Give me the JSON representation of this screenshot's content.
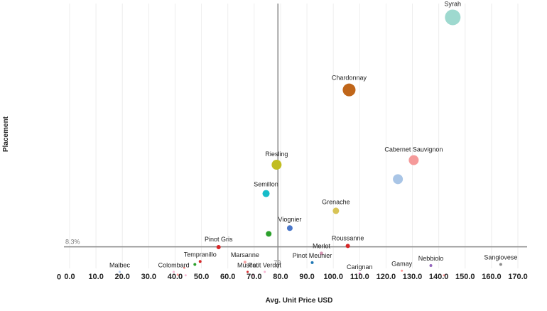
{
  "chart_data": {
    "type": "scatter",
    "title": "",
    "xlabel": "Avg. Unit Price USD",
    "ylabel": "Placement",
    "xlim": [
      -3,
      172
    ],
    "ylim": [
      -3,
      43
    ],
    "x_ticks": [
      "0.0",
      "10.0",
      "20.0",
      "30.0",
      "40.0",
      "50.0",
      "60.0",
      "70.0",
      "80.0",
      "90.0",
      "100.0",
      "110.0",
      "120.0",
      "130.0",
      "140.0",
      "150.0",
      "160.0",
      "170.0"
    ],
    "y_tick_zero": "0",
    "grid_vertical": true,
    "reference_lines": {
      "vertical_x": 79,
      "vertical_label": "79",
      "horizontal_y": 0.75,
      "horizontal_label": "8.3%"
    },
    "points": [
      {
        "label": "Syrah",
        "x": 145.3,
        "y": 40.6,
        "size": 11,
        "color": "#9ed9cf"
      },
      {
        "label": "Chardonnay",
        "x": 106,
        "y": 28,
        "size": 9,
        "color": "#c0661a"
      },
      {
        "label": "Riesling",
        "x": 78.5,
        "y": 15,
        "size": 7,
        "color": "#c1bd22"
      },
      {
        "label": "Cabernet Sauvignon",
        "x": 130.5,
        "y": 15.8,
        "size": 7,
        "color": "#f59a9a"
      },
      {
        "label": "",
        "x": 124.5,
        "y": 12.5,
        "size": 7,
        "color": "#a9c5e6"
      },
      {
        "label": "Semillon",
        "x": 74.5,
        "y": 10,
        "size": 5,
        "color": "#17bcc9"
      },
      {
        "label": "Grenache",
        "x": 101,
        "y": 7,
        "size": 4.5,
        "color": "#d8c456"
      },
      {
        "label": "Viognier",
        "x": 83.5,
        "y": 4,
        "size": 4,
        "color": "#4a77c9"
      },
      {
        "label": "",
        "x": 75.5,
        "y": 3,
        "size": 4,
        "color": "#2ca02c"
      },
      {
        "label": "Pinot Gris",
        "x": 56.5,
        "y": 0.7,
        "size": 3,
        "color": "#d62728"
      },
      {
        "label": "Roussanne",
        "x": 105.5,
        "y": 0.9,
        "size": 3,
        "color": "#d62728"
      },
      {
        "label": "Merlot",
        "x": 95.5,
        "y": -0.4,
        "size": 2.5,
        "color": "#d696b4"
      },
      {
        "label": "Tempranillo",
        "x": 49.5,
        "y": -1.8,
        "size": 2,
        "color": "#d62728"
      },
      {
        "label": "",
        "x": 47.5,
        "y": -2.3,
        "size": 2,
        "color": "#2ca02c"
      },
      {
        "label": "Marsanne",
        "x": 66.5,
        "y": -1.9,
        "size": 2,
        "color": "#f7a7a7"
      },
      {
        "label": "Pinot Meunier",
        "x": 92,
        "y": -2,
        "size": 2,
        "color": "#1f77b4"
      },
      {
        "label": "Nebbiolo",
        "x": 137,
        "y": -2.5,
        "size": 2,
        "color": "#9467bd"
      },
      {
        "label": "Sangiovese",
        "x": 163.5,
        "y": -2.3,
        "size": 2,
        "color": "#8c8c8c"
      },
      {
        "label": "Malbec",
        "x": 19,
        "y": -3.6,
        "size": 1.5,
        "color": "#aec7e8"
      },
      {
        "label": "Colombard",
        "x": 39.5,
        "y": -3.6,
        "size": 1.5,
        "color": "#f7b6d2"
      },
      {
        "label": "Muscat",
        "x": 67.5,
        "y": -3.6,
        "size": 1.5,
        "color": "#d62728"
      },
      {
        "label": "Petit Verdot",
        "x": 74,
        "y": -3.6,
        "size": 1.5,
        "color": "#f7b6d2"
      },
      {
        "label": "Carignan",
        "x": 110,
        "y": -3.9,
        "size": 1.5,
        "color": "#e377c2"
      },
      {
        "label": "Gamay",
        "x": 126,
        "y": -3.4,
        "size": 1.5,
        "color": "#ff9896"
      },
      {
        "label": "",
        "x": 142,
        "y": -4.2,
        "size": 1.5,
        "color": "#ff9896"
      },
      {
        "label": "",
        "x": 43.5,
        "y": -2.9,
        "size": 1.5,
        "color": "#ff9896"
      },
      {
        "label": "",
        "x": 41,
        "y": -4.1,
        "size": 1.5,
        "color": "#ff9896"
      },
      {
        "label": "",
        "x": 44,
        "y": -4.2,
        "size": 1.5,
        "color": "#f7b6d2"
      },
      {
        "label": "",
        "x": 69.5,
        "y": -4.2,
        "size": 1.5,
        "color": "#f7b6d2"
      }
    ]
  }
}
